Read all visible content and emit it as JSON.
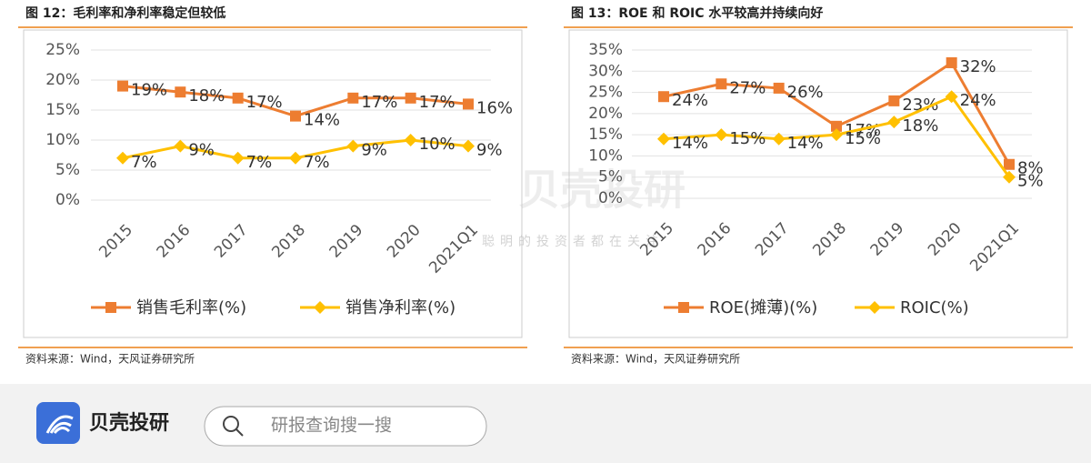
{
  "chart_data": [
    {
      "type": "line",
      "title": "图 12：毛利率和净利率稳定但较低",
      "categories": [
        "2015",
        "2016",
        "2017",
        "2018",
        "2019",
        "2020",
        "2021Q1"
      ],
      "series": [
        {
          "name": "销售毛利率(%)",
          "color": "#ed7d31",
          "marker": "square",
          "values": [
            19,
            18,
            17,
            14,
            17,
            17,
            16
          ],
          "value_labels": [
            "19%",
            "18%",
            "17%",
            "14%",
            "17%",
            "17%",
            "16%"
          ]
        },
        {
          "name": "销售净利率(%)",
          "color": "#ffc000",
          "marker": "diamond",
          "values": [
            7,
            9,
            7,
            7,
            9,
            10,
            9
          ],
          "value_labels": [
            "7%",
            "9%",
            "7%",
            "7%",
            "9%",
            "10%",
            "9%"
          ]
        }
      ],
      "ylim": [
        0,
        25
      ],
      "yticks": [
        {
          "value": 0,
          "label": "0%"
        },
        {
          "value": 5,
          "label": "5%"
        },
        {
          "value": 10,
          "label": "10%"
        },
        {
          "value": 15,
          "label": "15%"
        },
        {
          "value": 20,
          "label": "20%"
        },
        {
          "value": 25,
          "label": "25%"
        }
      ],
      "grid": true,
      "legend": "bottom",
      "source": "资料来源：Wind，天风证券研究所"
    },
    {
      "type": "line",
      "title": "图 13：ROE 和 ROIC 水平较高并持续向好",
      "categories": [
        "2015",
        "2016",
        "2017",
        "2018",
        "2019",
        "2020",
        "2021Q1"
      ],
      "series": [
        {
          "name": "ROE(摊薄)(%)",
          "color": "#ed7d31",
          "marker": "square",
          "values": [
            24,
            27,
            26,
            17,
            23,
            32,
            8
          ],
          "value_labels": [
            "24%",
            "27%",
            "26%",
            "17%",
            "23%",
            "32%",
            "8%"
          ]
        },
        {
          "name": "ROIC(%)",
          "color": "#ffc000",
          "marker": "diamond",
          "values": [
            14,
            15,
            14,
            15,
            18,
            24,
            5
          ],
          "value_labels": [
            "14%",
            "15%",
            "14%",
            "15%",
            "18%",
            "24%",
            "5%"
          ]
        }
      ],
      "ylim": [
        0,
        35
      ],
      "yticks": [
        {
          "value": 0,
          "label": "0%"
        },
        {
          "value": 5,
          "label": "5%"
        },
        {
          "value": 10,
          "label": "10%"
        },
        {
          "value": 15,
          "label": "15%"
        },
        {
          "value": 20,
          "label": "20%"
        },
        {
          "value": 25,
          "label": "25%"
        },
        {
          "value": 30,
          "label": "30%"
        },
        {
          "value": 35,
          "label": "35%"
        }
      ],
      "grid": true,
      "legend": "bottom",
      "source": "资料来源：Wind，天风证券研究所"
    }
  ],
  "watermark": {
    "brand": "贝壳投研",
    "slogan": "聪明的投资者都在关注"
  },
  "footer": {
    "brand": "贝壳投研",
    "search_placeholder": "研报查询搜一搜"
  }
}
